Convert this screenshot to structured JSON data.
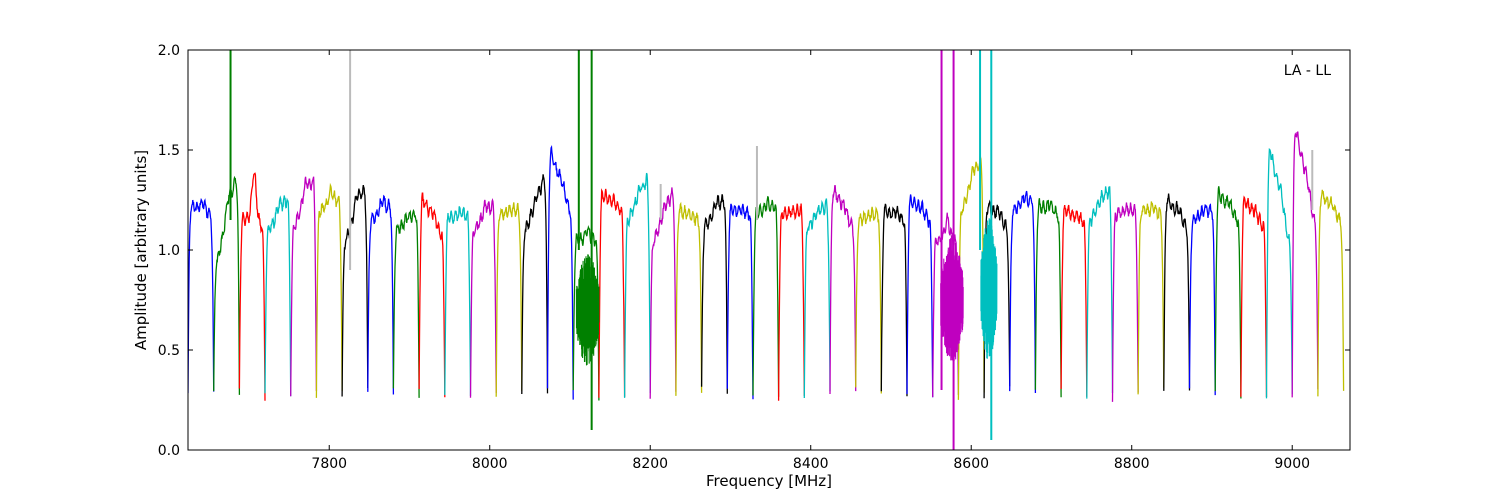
{
  "chart_data": {
    "type": "line",
    "annotation": "LA - LL",
    "xlabel": "Frequency [MHz]",
    "ylabel": "Amplitude [arbitrary units]",
    "xlim": [
      7624,
      9072
    ],
    "ylim": [
      0.0,
      2.0
    ],
    "xticks": [
      7800,
      8000,
      8200,
      8400,
      8600,
      8800,
      9000
    ],
    "yticks": [
      0.0,
      0.5,
      1.0,
      1.5,
      2.0
    ],
    "xtick_labels": [
      "7800",
      "8000",
      "8200",
      "8400",
      "8600",
      "8800",
      "9000"
    ],
    "ytick_labels": [
      "0.0",
      "0.5",
      "1.0",
      "1.5",
      "2.0"
    ],
    "grid": false,
    "legend": false,
    "palette": [
      "#0000ff",
      "#008000",
      "#ff0000",
      "#00bfbf",
      "#bf00bf",
      "#bfbf00",
      "#000000"
    ],
    "subband_width_mhz": 32,
    "subbands": [
      {
        "start": 7624,
        "color": "#0000ff",
        "left": 1.22,
        "right": 1.18,
        "peak": 1.26
      },
      {
        "start": 7656,
        "color": "#008000",
        "left": 0.95,
        "right": 1.35,
        "peak": 1.42
      },
      {
        "start": 7688,
        "color": "#ff0000",
        "left": 1.16,
        "right": 1.12,
        "peak": 1.41
      },
      {
        "start": 7720,
        "color": "#00bfbf",
        "left": 1.1,
        "right": 1.25,
        "peak": 1.29
      },
      {
        "start": 7752,
        "color": "#bf00bf",
        "left": 1.12,
        "right": 1.35,
        "peak": 1.42
      },
      {
        "start": 7784,
        "color": "#bfbf00",
        "left": 1.2,
        "right": 1.25,
        "peak": 1.32
      },
      {
        "start": 7816,
        "color": "#000000",
        "left": 1.05,
        "right": 1.3,
        "peak": 1.37
      },
      {
        "start": 7848,
        "color": "#0000ff",
        "left": 1.15,
        "right": 1.22,
        "peak": 1.28
      },
      {
        "start": 7880,
        "color": "#008000",
        "left": 1.1,
        "right": 1.18,
        "peak": 1.2
      },
      {
        "start": 7912,
        "color": "#ff0000",
        "left": 1.25,
        "right": 1.08,
        "peak": 1.28
      },
      {
        "start": 7944,
        "color": "#00bfbf",
        "left": 1.16,
        "right": 1.18,
        "peak": 1.19
      },
      {
        "start": 7976,
        "color": "#bf00bf",
        "left": 1.1,
        "right": 1.22,
        "peak": 1.27
      },
      {
        "start": 8008,
        "color": "#bfbf00",
        "left": 1.18,
        "right": 1.2,
        "peak": 1.21
      },
      {
        "start": 8040,
        "color": "#000000",
        "left": 1.1,
        "right": 1.35,
        "peak": 1.37
      },
      {
        "start": 8072,
        "color": "#0000ff",
        "left": 1.48,
        "right": 1.2,
        "peak": 1.51
      },
      {
        "start": 8104,
        "color": "#008000",
        "left": 1.05,
        "right": 1.05,
        "peak": 1.1
      },
      {
        "start": 8136,
        "color": "#ff0000",
        "left": 1.28,
        "right": 1.2,
        "peak": 1.29
      },
      {
        "start": 8168,
        "color": "#00bfbf",
        "left": 1.15,
        "right": 1.35,
        "peak": 1.38
      },
      {
        "start": 8200,
        "color": "#bf00bf",
        "left": 1.05,
        "right": 1.28,
        "peak": 1.31
      },
      {
        "start": 8232,
        "color": "#bfbf00",
        "left": 1.2,
        "right": 1.15,
        "peak": 1.21
      },
      {
        "start": 8264,
        "color": "#000000",
        "left": 1.12,
        "right": 1.25,
        "peak": 1.29
      },
      {
        "start": 8296,
        "color": "#0000ff",
        "left": 1.2,
        "right": 1.18,
        "peak": 1.21
      },
      {
        "start": 8328,
        "color": "#008000",
        "left": 1.18,
        "right": 1.22,
        "peak": 1.25
      },
      {
        "start": 8360,
        "color": "#ff0000",
        "left": 1.18,
        "right": 1.2,
        "peak": 1.2
      },
      {
        "start": 8392,
        "color": "#00bfbf",
        "left": 1.12,
        "right": 1.22,
        "peak": 1.24
      },
      {
        "start": 8424,
        "color": "#bf00bf",
        "left": 1.3,
        "right": 1.12,
        "peak": 1.33
      },
      {
        "start": 8456,
        "color": "#bfbf00",
        "left": 1.15,
        "right": 1.18,
        "peak": 1.19
      },
      {
        "start": 8488,
        "color": "#000000",
        "left": 1.2,
        "right": 1.15,
        "peak": 1.22
      },
      {
        "start": 8520,
        "color": "#0000ff",
        "left": 1.25,
        "right": 1.15,
        "peak": 1.27
      },
      {
        "start": 8552,
        "color": "#bf00bf",
        "left": 1.05,
        "right": 1.05,
        "peak": 1.15
      },
      {
        "start": 8584,
        "color": "#bfbf00",
        "left": 1.2,
        "right": 1.45,
        "peak": 1.5
      },
      {
        "start": 8616,
        "color": "#000000",
        "left": 1.22,
        "right": 1.12,
        "peak": 1.25
      },
      {
        "start": 8648,
        "color": "#0000ff",
        "left": 1.2,
        "right": 1.25,
        "peak": 1.28
      },
      {
        "start": 8680,
        "color": "#008000",
        "left": 1.22,
        "right": 1.18,
        "peak": 1.25
      },
      {
        "start": 8712,
        "color": "#ff0000",
        "left": 1.2,
        "right": 1.15,
        "peak": 1.2
      },
      {
        "start": 8744,
        "color": "#00bfbf",
        "left": 1.15,
        "right": 1.3,
        "peak": 1.32
      },
      {
        "start": 8776,
        "color": "#bf00bf",
        "left": 1.18,
        "right": 1.2,
        "peak": 1.21
      },
      {
        "start": 8808,
        "color": "#bfbf00",
        "left": 1.2,
        "right": 1.18,
        "peak": 1.22
      },
      {
        "start": 8840,
        "color": "#000000",
        "left": 1.25,
        "right": 1.12,
        "peak": 1.28
      },
      {
        "start": 8872,
        "color": "#0000ff",
        "left": 1.15,
        "right": 1.2,
        "peak": 1.22
      },
      {
        "start": 8904,
        "color": "#008000",
        "left": 1.28,
        "right": 1.15,
        "peak": 1.31
      },
      {
        "start": 8936,
        "color": "#ff0000",
        "left": 1.25,
        "right": 1.12,
        "peak": 1.27
      },
      {
        "start": 8968,
        "color": "#00bfbf",
        "left": 1.5,
        "right": 1.05,
        "peak": 1.56
      },
      {
        "start": 9000,
        "color": "#bf00bf",
        "left": 1.6,
        "right": 1.15,
        "peak": 1.64
      },
      {
        "start": 9032,
        "color": "#bfbf00",
        "left": 1.28,
        "right": 1.15,
        "peak": 1.3
      }
    ],
    "noisy_regions": [
      {
        "x_from": 8108,
        "x_to": 8136,
        "color": "#008000",
        "center": 0.7,
        "amplitude": 0.4
      },
      {
        "x_from": 8562,
        "x_to": 8590,
        "color": "#bf00bf",
        "center": 0.75,
        "amplitude": 0.45
      },
      {
        "x_from": 8612,
        "x_to": 8632,
        "color": "#00bfbf",
        "center": 0.8,
        "amplitude": 0.5
      }
    ],
    "spikes": [
      {
        "x": 7677,
        "y_low": 1.15,
        "y_high": 2.0,
        "color": "#008000"
      },
      {
        "x": 7826,
        "y_low": 0.9,
        "y_high": 2.0,
        "color": "#bbbbbb"
      },
      {
        "x": 8111,
        "y_low": 1.0,
        "y_high": 2.0,
        "color": "#008000"
      },
      {
        "x": 8127,
        "y_low": 0.1,
        "y_high": 2.0,
        "color": "#008000"
      },
      {
        "x": 8213,
        "y_low": 1.15,
        "y_high": 1.33,
        "color": "#bbbbbb"
      },
      {
        "x": 8333,
        "y_low": 1.15,
        "y_high": 1.52,
        "color": "#bbbbbb"
      },
      {
        "x": 8563,
        "y_low": 0.3,
        "y_high": 2.0,
        "color": "#bf00bf"
      },
      {
        "x": 8578,
        "y_low": 0.0,
        "y_high": 2.0,
        "color": "#bf00bf"
      },
      {
        "x": 8611,
        "y_low": 1.0,
        "y_high": 2.0,
        "color": "#00bfbf"
      },
      {
        "x": 8625,
        "y_low": 0.05,
        "y_high": 2.0,
        "color": "#00bfbf"
      },
      {
        "x": 9025,
        "y_low": 1.2,
        "y_high": 1.5,
        "color": "#bbbbbb"
      }
    ]
  }
}
